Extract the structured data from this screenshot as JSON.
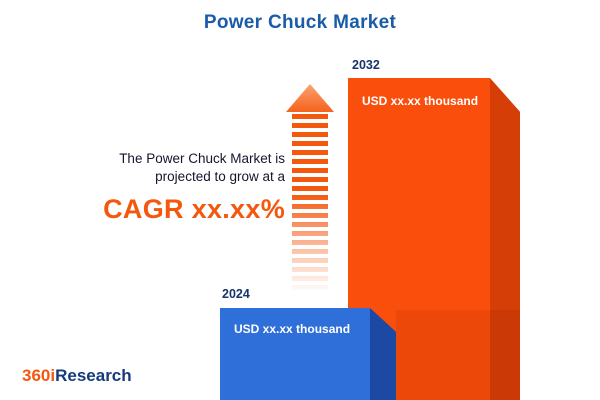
{
  "title": "Power Chuck Market",
  "annotation": {
    "line1": "The Power Chuck Market is",
    "line2": "projected to grow at a",
    "cagr": "CAGR xx.xx%"
  },
  "logo": {
    "prefix": "360i",
    "suffix": "Research"
  },
  "chart_data": {
    "type": "bar",
    "title": "Power Chuck Market",
    "categories": [
      "2024",
      "2032"
    ],
    "series": [
      {
        "name": "Market size (USD thousand)",
        "values": [
          "xx.xx",
          "xx.xx"
        ]
      }
    ],
    "bar_value_labels": [
      "USD xx.xx thousand",
      "USD xx.xx thousand"
    ],
    "bar_colors": [
      "#2E6FD9",
      "#FA4E0C"
    ],
    "orientation": "vertical",
    "legend": "none",
    "grid": "off"
  },
  "colors": {
    "title_navy": "#1A5CA8",
    "year_label_navy": "#17356B",
    "orange_front": "#FA4E0C",
    "orange_side": "#D63E08",
    "blue_front": "#2E6FD9",
    "blue_side": "#1C49A3",
    "accent_orange": "#F4570E",
    "text_dark": "#15152E",
    "background": "#FFFFFF"
  }
}
